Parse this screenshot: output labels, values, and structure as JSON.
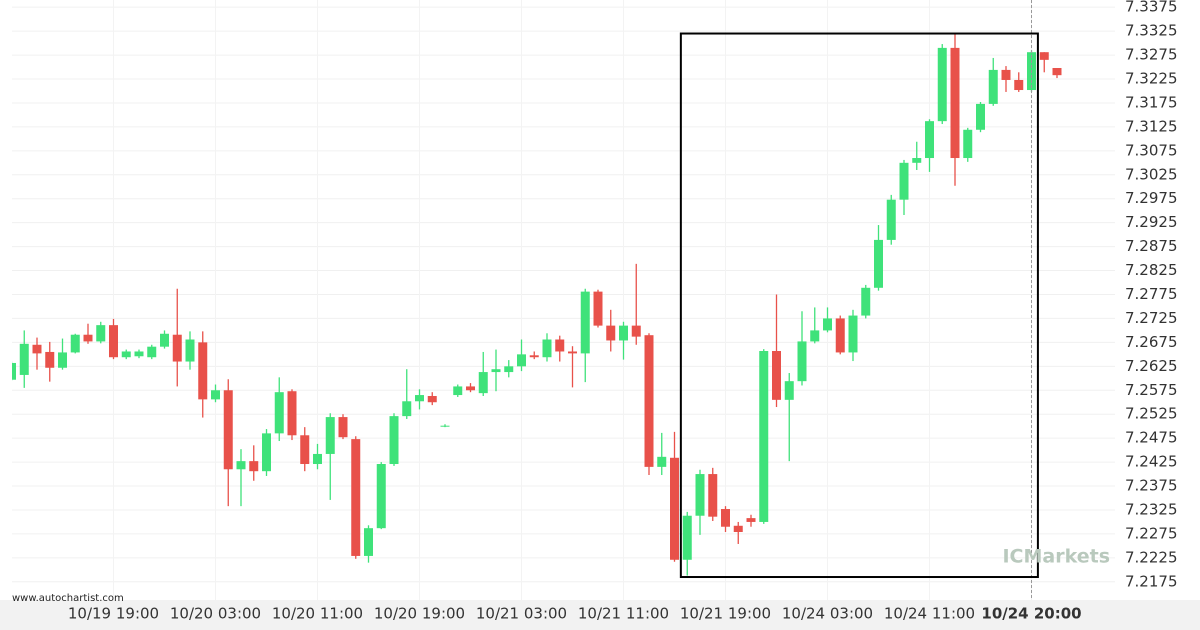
{
  "chart_data": {
    "type": "candlestick",
    "categories": [
      null,
      null,
      null,
      null,
      null,
      null,
      null,
      null,
      "10/19 19:00",
      null,
      null,
      null,
      null,
      null,
      null,
      null,
      "10/20 03:00",
      null,
      null,
      null,
      null,
      null,
      null,
      null,
      "10/20 11:00",
      null,
      null,
      null,
      null,
      null,
      null,
      null,
      "10/20 19:00",
      null,
      null,
      null,
      null,
      null,
      null,
      null,
      "10/21 03:00",
      null,
      null,
      null,
      null,
      null,
      null,
      null,
      "10/21 11:00",
      null,
      null,
      null,
      null,
      null,
      null,
      null,
      "10/21 19:00",
      null,
      null,
      null,
      null,
      null,
      null,
      null,
      "10/24 03:00",
      null,
      null,
      null,
      null,
      null,
      null,
      null,
      "10/24 11:00",
      null,
      null,
      null,
      null,
      null,
      null,
      null,
      "10/24 20:00",
      null,
      null
    ],
    "open": [
      7.2597,
      7.2607,
      7.267,
      7.2655,
      7.2622,
      7.2654,
      7.2691,
      7.2677,
      7.2711,
      7.2644,
      7.2646,
      7.2644,
      7.2666,
      7.2691,
      7.2635,
      7.2675,
      7.2556,
      7.2575,
      7.241,
      7.2427,
      7.2406,
      7.2485,
      7.2573,
      7.2481,
      7.2421,
      7.2442,
      7.2519,
      7.2473,
      7.2229,
      7.2287,
      7.2421,
      7.2521,
      7.2552,
      7.2563,
      7.2499,
      7.2565,
      7.2583,
      7.2569,
      7.2613,
      7.2613,
      7.2625,
      7.2648,
      7.2644,
      7.2681,
      7.2656,
      7.2652,
      7.2781,
      7.271,
      7.2679,
      7.271,
      7.269,
      7.2415,
      7.2434,
      7.2221,
      7.2313,
      7.24,
      7.2327,
      7.2292,
      7.2308,
      7.23,
      7.2657,
      7.2555,
      7.2594,
      7.2677,
      7.27,
      7.2725,
      7.2654,
      7.2731,
      7.2789,
      7.2889,
      7.2973,
      7.305,
      7.306,
      7.3137,
      7.329,
      7.306,
      7.3119,
      7.3173,
      7.3244,
      7.3223,
      7.3202,
      7.3281,
      7.3248
    ],
    "high": [
      7.2635,
      7.27,
      7.2685,
      7.2676,
      7.2683,
      7.2693,
      7.2714,
      7.2718,
      7.2724,
      7.266,
      7.266,
      7.267,
      7.27,
      7.2787,
      7.2698,
      7.2698,
      7.2587,
      7.2598,
      7.2452,
      7.246,
      7.2494,
      7.2602,
      7.2577,
      7.2498,
      7.2463,
      7.2527,
      7.2525,
      7.2479,
      7.2293,
      7.2425,
      7.2527,
      7.2619,
      7.2577,
      7.2571,
      7.2504,
      7.2587,
      7.259,
      7.2655,
      7.266,
      7.2638,
      7.2681,
      7.2656,
      7.2694,
      7.2689,
      7.2667,
      7.2787,
      7.2785,
      7.2743,
      7.2718,
      7.2839,
      7.2694,
      7.2486,
      7.2488,
      7.2321,
      7.2409,
      7.2413,
      7.2333,
      7.23,
      7.2315,
      7.2661,
      7.2775,
      7.2611,
      7.274,
      7.2748,
      7.2748,
      7.2731,
      7.2743,
      7.2795,
      7.292,
      7.2983,
      7.3056,
      7.3094,
      7.3141,
      7.3298,
      7.3319,
      7.3123,
      7.3177,
      7.3269,
      7.3252,
      7.3239,
      7.3285,
      7.3281,
      7.3248
    ],
    "low": [
      7.2595,
      7.258,
      7.2618,
      7.2593,
      7.2618,
      7.2652,
      7.2672,
      7.2673,
      7.264,
      7.264,
      7.2642,
      7.264,
      7.2662,
      7.2583,
      7.2618,
      7.2518,
      7.255,
      7.2333,
      7.2333,
      7.2386,
      7.2396,
      7.2469,
      7.2471,
      7.2406,
      7.241,
      7.2346,
      7.2473,
      7.2223,
      7.2215,
      7.2285,
      7.2417,
      7.2515,
      7.2535,
      7.2544,
      7.2498,
      7.2561,
      7.2571,
      7.2563,
      7.2573,
      7.2602,
      7.2615,
      7.264,
      7.2635,
      7.2635,
      7.2581,
      7.2592,
      7.2706,
      7.2656,
      7.2639,
      7.267,
      7.2398,
      7.2398,
      7.2217,
      7.2188,
      7.2273,
      7.2302,
      7.2279,
      7.2254,
      7.229,
      7.2296,
      7.254,
      7.2427,
      7.2585,
      7.2673,
      7.2696,
      7.265,
      7.2636,
      7.2725,
      7.2783,
      7.2879,
      7.2941,
      7.3035,
      7.3031,
      7.3131,
      7.3002,
      7.3052,
      7.3114,
      7.3169,
      7.3198,
      7.3198,
      7.3198,
      7.3239,
      7.3227
    ],
    "close": [
      7.2632,
      7.2672,
      7.2652,
      7.2622,
      7.2654,
      7.2691,
      7.2677,
      7.2711,
      7.2644,
      7.2656,
      7.2656,
      7.2666,
      7.2693,
      7.2635,
      7.2681,
      7.2556,
      7.2575,
      7.241,
      7.2427,
      7.2406,
      7.2485,
      7.2571,
      7.2481,
      7.2421,
      7.2442,
      7.2519,
      7.2477,
      7.2229,
      7.2287,
      7.2421,
      7.2521,
      7.2552,
      7.2565,
      7.255,
      7.2501,
      7.2583,
      7.2575,
      7.2613,
      7.2619,
      7.2625,
      7.265,
      7.2644,
      7.2681,
      7.2656,
      7.2652,
      7.2781,
      7.271,
      7.2679,
      7.271,
      7.2687,
      7.2415,
      7.2436,
      7.2221,
      7.2313,
      7.24,
      7.2311,
      7.229,
      7.2279,
      7.23,
      7.2657,
      7.2555,
      7.2594,
      7.2677,
      7.27,
      7.2725,
      7.2654,
      7.2731,
      7.2789,
      7.2889,
      7.2973,
      7.305,
      7.306,
      7.3137,
      7.329,
      7.306,
      7.3119,
      7.3173,
      7.3244,
      7.3223,
      7.3202,
      7.3281,
      7.3265,
      7.3233
    ],
    "up_color": "#3fe27a",
    "down_color": "#e8514a",
    "ylim": [
      7.2137,
      7.339
    ],
    "yticks": [
      7.2175,
      7.2225,
      7.2275,
      7.2325,
      7.2375,
      7.2425,
      7.2475,
      7.2525,
      7.2575,
      7.2625,
      7.2675,
      7.2725,
      7.2775,
      7.2825,
      7.2875,
      7.2925,
      7.2975,
      7.3025,
      7.3075,
      7.3125,
      7.3175,
      7.3225,
      7.3275,
      7.3325,
      7.3375
    ],
    "grid": true,
    "current_index": 80,
    "box": {
      "x": [
        53,
        80
      ],
      "y": [
        7.2185,
        7.332
      ]
    },
    "watermarks": {
      "site": "www.autochartist.com",
      "broker": "ICMarkets"
    }
  }
}
